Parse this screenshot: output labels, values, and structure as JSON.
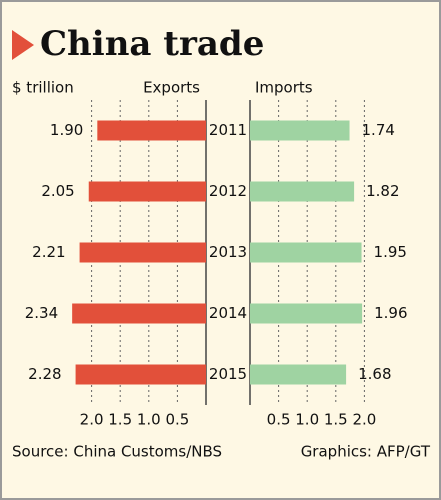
{
  "chart_data": {
    "type": "bar",
    "title": "China trade",
    "unit": "$ trillion",
    "categories": [
      "2011",
      "2012",
      "2013",
      "2014",
      "2015"
    ],
    "series": [
      {
        "name": "Exports",
        "color": "#e2503a",
        "values": [
          1.9,
          2.05,
          2.21,
          2.34,
          2.28
        ],
        "value_labels": [
          "1.90",
          "2.05",
          "2.21",
          "2.34",
          "2.28"
        ]
      },
      {
        "name": "Imports",
        "color": "#9fd3a2",
        "values": [
          1.74,
          1.82,
          1.95,
          1.96,
          1.68
        ]
      }
    ],
    "xlim": [
      0,
      2.5
    ],
    "xticks": [
      {
        "value": 2,
        "label": "2.0"
      },
      1.5,
      {
        "value": 1,
        "label": "1.0"
      },
      0.5
    ],
    "grid": true,
    "source": "Source: China Customs/NBS",
    "credit": "Graphics: AFP/GT"
  }
}
